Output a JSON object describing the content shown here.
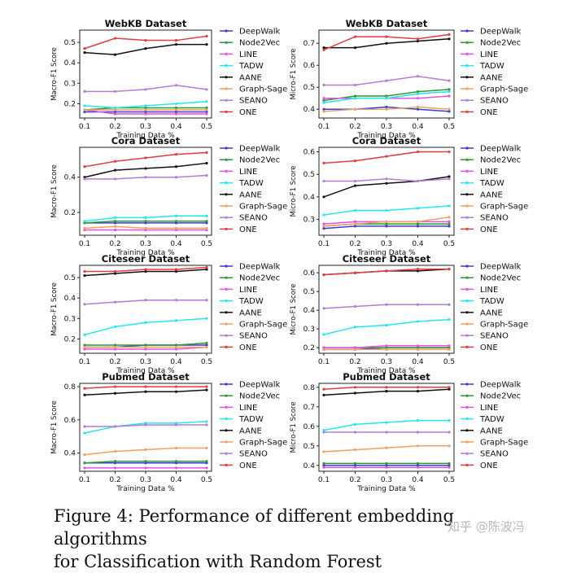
{
  "series_colors": [
    "#3b3bd9",
    "#2c9a2c",
    "#e84fe8",
    "#22e6f0",
    "#111111",
    "#f0a060",
    "#b57bd8",
    "#e53b3b"
  ],
  "chart_data": [
    {
      "type": "line",
      "title": "WebKB Dataset",
      "xlabel": "Training Data %",
      "ylabel": "Macro-F1 Score",
      "x": [
        0.1,
        0.2,
        0.3,
        0.4,
        0.5
      ],
      "x_ticks": [
        "0.1",
        "0.2",
        "0.3",
        "0.4",
        "0.5"
      ],
      "ylim": [
        0.13,
        0.56
      ],
      "y_ticks": [
        0.2,
        0.3,
        0.4,
        0.5
      ],
      "y_tick_labels": [
        "0.2",
        "0.3",
        "0.4",
        "0.5"
      ],
      "legend": "right",
      "grid": false,
      "series": [
        {
          "name": "DeepWalk",
          "values": [
            0.16,
            0.16,
            0.16,
            0.16,
            0.16
          ]
        },
        {
          "name": "Node2Vec",
          "values": [
            0.17,
            0.18,
            0.18,
            0.18,
            0.18
          ]
        },
        {
          "name": "LINE",
          "values": [
            0.17,
            0.15,
            0.15,
            0.15,
            0.15
          ]
        },
        {
          "name": "TADW",
          "values": [
            0.19,
            0.18,
            0.19,
            0.2,
            0.21
          ]
        },
        {
          "name": "AANE",
          "values": [
            0.45,
            0.44,
            0.47,
            0.49,
            0.49
          ]
        },
        {
          "name": "Graph-Sage",
          "values": [
            0.17,
            0.17,
            0.17,
            0.17,
            0.17
          ]
        },
        {
          "name": "SEANO",
          "values": [
            0.26,
            0.26,
            0.27,
            0.29,
            0.27
          ]
        },
        {
          "name": "ONE",
          "values": [
            0.47,
            0.52,
            0.51,
            0.51,
            0.53
          ]
        }
      ]
    },
    {
      "type": "line",
      "title": "WebKB Dataset",
      "xlabel": "Training Data %",
      "ylabel": "Micro-F1 Score",
      "x": [
        0.1,
        0.2,
        0.3,
        0.4,
        0.5
      ],
      "x_ticks": [
        "0.1",
        "0.2",
        "0.3",
        "0.4",
        "0.5"
      ],
      "ylim": [
        0.36,
        0.76
      ],
      "y_ticks": [
        0.4,
        0.5,
        0.6,
        0.7
      ],
      "y_tick_labels": [
        "0.4",
        "0.5",
        "0.6",
        "0.7"
      ],
      "legend": "right",
      "grid": false,
      "series": [
        {
          "name": "DeepWalk",
          "values": [
            0.4,
            0.4,
            0.41,
            0.4,
            0.39
          ]
        },
        {
          "name": "Node2Vec",
          "values": [
            0.44,
            0.46,
            0.46,
            0.48,
            0.49
          ]
        },
        {
          "name": "LINE",
          "values": [
            0.45,
            0.45,
            0.45,
            0.45,
            0.46
          ]
        },
        {
          "name": "TADW",
          "values": [
            0.43,
            0.45,
            0.45,
            0.47,
            0.48
          ]
        },
        {
          "name": "AANE",
          "values": [
            0.68,
            0.68,
            0.7,
            0.71,
            0.72
          ]
        },
        {
          "name": "Graph-Sage",
          "values": [
            0.39,
            0.4,
            0.4,
            0.41,
            0.4
          ]
        },
        {
          "name": "SEANO",
          "values": [
            0.51,
            0.51,
            0.53,
            0.55,
            0.53
          ]
        },
        {
          "name": "ONE",
          "values": [
            0.67,
            0.73,
            0.73,
            0.72,
            0.74
          ]
        }
      ]
    },
    {
      "type": "line",
      "title": "Cora Dataset",
      "xlabel": "Training Data %",
      "ylabel": "Macro-F1 Score",
      "x": [
        0.1,
        0.2,
        0.3,
        0.4,
        0.5
      ],
      "x_ticks": [
        "0.1",
        "0.2",
        "0.3",
        "0.4",
        "0.5"
      ],
      "ylim": [
        0.07,
        0.57
      ],
      "y_ticks": [
        0.2,
        0.4
      ],
      "y_tick_labels": [
        "0.2",
        "0.4"
      ],
      "legend": "right",
      "grid": false,
      "series": [
        {
          "name": "DeepWalk",
          "values": [
            0.14,
            0.14,
            0.14,
            0.14,
            0.14
          ]
        },
        {
          "name": "Node2Vec",
          "values": [
            0.14,
            0.15,
            0.15,
            0.15,
            0.15
          ]
        },
        {
          "name": "LINE",
          "values": [
            0.1,
            0.1,
            0.1,
            0.1,
            0.1
          ]
        },
        {
          "name": "TADW",
          "values": [
            0.15,
            0.17,
            0.17,
            0.18,
            0.18
          ]
        },
        {
          "name": "AANE",
          "values": [
            0.4,
            0.44,
            0.45,
            0.46,
            0.48
          ]
        },
        {
          "name": "Graph-Sage",
          "values": [
            0.11,
            0.12,
            0.11,
            0.11,
            0.11
          ]
        },
        {
          "name": "SEANO",
          "values": [
            0.39,
            0.39,
            0.4,
            0.4,
            0.41
          ]
        },
        {
          "name": "ONE",
          "values": [
            0.46,
            0.49,
            0.51,
            0.53,
            0.54
          ]
        }
      ]
    },
    {
      "type": "line",
      "title": "Cora Dataset",
      "xlabel": "Training Data %",
      "ylabel": "Micro-F1 Score",
      "x": [
        0.1,
        0.2,
        0.3,
        0.4,
        0.5
      ],
      "x_ticks": [
        "0.1",
        "0.2",
        "0.3",
        "0.4",
        "0.5"
      ],
      "ylim": [
        0.23,
        0.62
      ],
      "y_ticks": [
        0.3,
        0.4,
        0.5,
        0.6
      ],
      "y_tick_labels": [
        "0.3",
        "0.4",
        "0.5",
        "0.6"
      ],
      "legend": "right",
      "grid": false,
      "series": [
        {
          "name": "DeepWalk",
          "values": [
            0.26,
            0.27,
            0.27,
            0.27,
            0.27
          ]
        },
        {
          "name": "Node2Vec",
          "values": [
            0.27,
            0.28,
            0.28,
            0.28,
            0.28
          ]
        },
        {
          "name": "LINE",
          "values": [
            0.28,
            0.29,
            0.29,
            0.29,
            0.29
          ]
        },
        {
          "name": "TADW",
          "values": [
            0.32,
            0.34,
            0.34,
            0.35,
            0.36
          ]
        },
        {
          "name": "AANE",
          "values": [
            0.4,
            0.45,
            0.46,
            0.47,
            0.49
          ]
        },
        {
          "name": "Graph-Sage",
          "values": [
            0.27,
            0.28,
            0.29,
            0.29,
            0.31
          ]
        },
        {
          "name": "SEANO",
          "values": [
            0.47,
            0.47,
            0.48,
            0.47,
            0.48
          ]
        },
        {
          "name": "ONE",
          "values": [
            0.55,
            0.56,
            0.58,
            0.6,
            0.6
          ]
        }
      ]
    },
    {
      "type": "line",
      "title": "Citeseer Dataset",
      "xlabel": "Training Data %",
      "ylabel": "Macro-F1 Score",
      "x": [
        0.1,
        0.2,
        0.3,
        0.4,
        0.5
      ],
      "x_ticks": [
        "0.1",
        "0.2",
        "0.3",
        "0.4",
        "0.5"
      ],
      "ylim": [
        0.13,
        0.56
      ],
      "y_ticks": [
        0.2,
        0.3,
        0.4,
        0.5
      ],
      "y_tick_labels": [
        "0.2",
        "0.3",
        "0.4",
        "0.5"
      ],
      "legend": "right",
      "grid": false,
      "series": [
        {
          "name": "DeepWalk",
          "values": [
            0.16,
            0.16,
            0.17,
            0.17,
            0.17
          ]
        },
        {
          "name": "Node2Vec",
          "values": [
            0.17,
            0.17,
            0.17,
            0.17,
            0.18
          ]
        },
        {
          "name": "LINE",
          "values": [
            0.15,
            0.15,
            0.15,
            0.15,
            0.16
          ]
        },
        {
          "name": "TADW",
          "values": [
            0.22,
            0.26,
            0.28,
            0.29,
            0.3
          ]
        },
        {
          "name": "AANE",
          "values": [
            0.51,
            0.52,
            0.53,
            0.53,
            0.54
          ]
        },
        {
          "name": "Graph-Sage",
          "values": [
            0.16,
            0.16,
            0.16,
            0.16,
            0.16
          ]
        },
        {
          "name": "SEANO",
          "values": [
            0.37,
            0.38,
            0.39,
            0.39,
            0.39
          ]
        },
        {
          "name": "ONE",
          "values": [
            0.53,
            0.53,
            0.54,
            0.54,
            0.55
          ]
        }
      ]
    },
    {
      "type": "line",
      "title": "Citeseer Dataset",
      "xlabel": "Training Data %",
      "ylabel": "Micro-F1 Score",
      "x": [
        0.1,
        0.2,
        0.3,
        0.4,
        0.5
      ],
      "x_ticks": [
        "0.1",
        "0.2",
        "0.3",
        "0.4",
        "0.5"
      ],
      "ylim": [
        0.17,
        0.64
      ],
      "y_ticks": [
        0.2,
        0.3,
        0.4,
        0.5,
        0.6
      ],
      "y_tick_labels": [
        "0.2",
        "0.3",
        "0.4",
        "0.5",
        "0.6"
      ],
      "legend": "right",
      "grid": false,
      "series": [
        {
          "name": "DeepWalk",
          "values": [
            0.19,
            0.19,
            0.2,
            0.2,
            0.2
          ]
        },
        {
          "name": "Node2Vec",
          "values": [
            0.2,
            0.2,
            0.2,
            0.2,
            0.2
          ]
        },
        {
          "name": "LINE",
          "values": [
            0.2,
            0.2,
            0.21,
            0.21,
            0.21
          ]
        },
        {
          "name": "TADW",
          "values": [
            0.27,
            0.31,
            0.32,
            0.34,
            0.35
          ]
        },
        {
          "name": "AANE",
          "values": [
            0.59,
            0.6,
            0.61,
            0.61,
            0.62
          ]
        },
        {
          "name": "Graph-Sage",
          "values": [
            0.19,
            0.19,
            0.19,
            0.19,
            0.19
          ]
        },
        {
          "name": "SEANO",
          "values": [
            0.41,
            0.42,
            0.43,
            0.43,
            0.43
          ]
        },
        {
          "name": "ONE",
          "values": [
            0.59,
            0.6,
            0.61,
            0.62,
            0.62
          ]
        }
      ]
    },
    {
      "type": "line",
      "title": "Pubmed Dataset",
      "xlabel": "Training Data %",
      "ylabel": "Macro-F1 Score",
      "x": [
        0.1,
        0.2,
        0.3,
        0.4,
        0.5
      ],
      "x_ticks": [
        "0.1",
        "0.2",
        "0.3",
        "0.4",
        "0.5"
      ],
      "ylim": [
        0.29,
        0.82
      ],
      "y_ticks": [
        0.4,
        0.6,
        0.8
      ],
      "y_tick_labels": [
        "0.4",
        "0.6",
        "0.8"
      ],
      "legend": "right",
      "grid": false,
      "series": [
        {
          "name": "DeepWalk",
          "values": [
            0.34,
            0.34,
            0.34,
            0.34,
            0.34
          ]
        },
        {
          "name": "Node2Vec",
          "values": [
            0.34,
            0.35,
            0.35,
            0.35,
            0.35
          ]
        },
        {
          "name": "LINE",
          "values": [
            0.31,
            0.31,
            0.31,
            0.31,
            0.31
          ]
        },
        {
          "name": "TADW",
          "values": [
            0.52,
            0.56,
            0.58,
            0.58,
            0.59
          ]
        },
        {
          "name": "AANE",
          "values": [
            0.75,
            0.76,
            0.77,
            0.77,
            0.78
          ]
        },
        {
          "name": "Graph-Sage",
          "values": [
            0.39,
            0.41,
            0.42,
            0.43,
            0.43
          ]
        },
        {
          "name": "SEANO",
          "values": [
            0.56,
            0.56,
            0.57,
            0.57,
            0.57
          ]
        },
        {
          "name": "ONE",
          "values": [
            0.79,
            0.8,
            0.8,
            0.8,
            0.8
          ]
        }
      ]
    },
    {
      "type": "line",
      "title": "Pubmed Dataset",
      "xlabel": "Training Data %",
      "ylabel": "Micro-F1 Score",
      "x": [
        0.1,
        0.2,
        0.3,
        0.4,
        0.5
      ],
      "x_ticks": [
        "0.1",
        "0.2",
        "0.3",
        "0.4",
        "0.5"
      ],
      "ylim": [
        0.37,
        0.82
      ],
      "y_ticks": [
        0.4,
        0.5,
        0.6,
        0.7,
        0.8
      ],
      "y_tick_labels": [
        "0.4",
        "0.5",
        "0.6",
        "0.7",
        "0.8"
      ],
      "legend": "right",
      "grid": false,
      "series": [
        {
          "name": "DeepWalk",
          "values": [
            0.4,
            0.4,
            0.4,
            0.4,
            0.4
          ]
        },
        {
          "name": "Node2Vec",
          "values": [
            0.41,
            0.41,
            0.41,
            0.41,
            0.41
          ]
        },
        {
          "name": "LINE",
          "values": [
            0.39,
            0.39,
            0.39,
            0.39,
            0.39
          ]
        },
        {
          "name": "TADW",
          "values": [
            0.58,
            0.61,
            0.62,
            0.63,
            0.63
          ]
        },
        {
          "name": "AANE",
          "values": [
            0.76,
            0.77,
            0.78,
            0.78,
            0.79
          ]
        },
        {
          "name": "Graph-Sage",
          "values": [
            0.47,
            0.48,
            0.49,
            0.5,
            0.5
          ]
        },
        {
          "name": "SEANO",
          "values": [
            0.57,
            0.57,
            0.57,
            0.57,
            0.57
          ]
        },
        {
          "name": "ONE",
          "values": [
            0.79,
            0.8,
            0.8,
            0.8,
            0.8
          ]
        }
      ]
    }
  ],
  "caption": {
    "line1": "Figure 4: Performance of different embedding algorithms",
    "line2": "for Classification with Random Forest"
  },
  "watermark": "知乎 @陈波冯"
}
